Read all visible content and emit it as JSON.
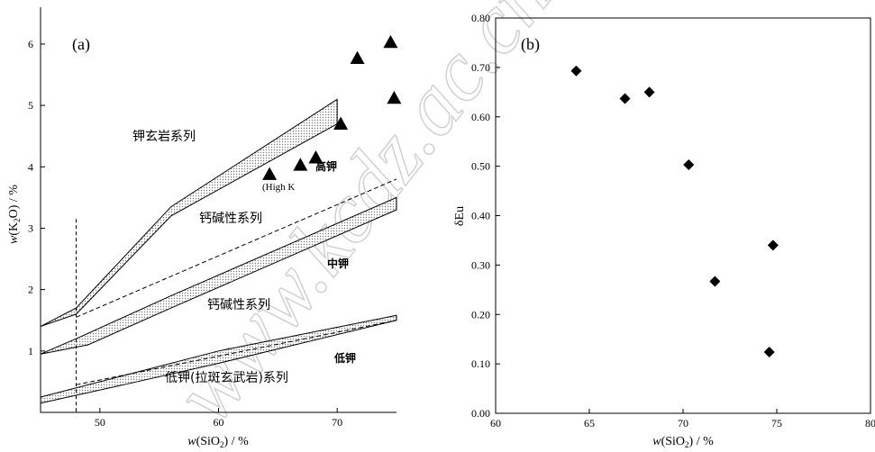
{
  "chart_data": [
    {
      "type": "scatter",
      "panel_label": "(a)",
      "xlabel": "w(SiO2) / %",
      "ylabel": "w(K2O) / %",
      "xlim": [
        45,
        75
      ],
      "ylim": [
        0,
        6.6
      ],
      "xticks": [
        50,
        60,
        70
      ],
      "yticks": [
        1,
        2,
        3,
        4,
        5,
        6
      ],
      "series": [
        {
          "marker": "triangle",
          "color": "#000000",
          "points": [
            {
              "x": 64.3,
              "y": 3.88
            },
            {
              "x": 66.9,
              "y": 4.03
            },
            {
              "x": 68.2,
              "y": 4.15
            },
            {
              "x": 70.3,
              "y": 4.7
            },
            {
              "x": 71.7,
              "y": 5.77
            },
            {
              "x": 74.5,
              "y": 6.03
            },
            {
              "x": 74.8,
              "y": 5.12
            }
          ]
        }
      ],
      "field_labels": {
        "shoshonite": "钾玄岩系列",
        "high_k_calc_alkaline": "钙碱性系列",
        "high_k": "高钾",
        "high_k_en": "(High K",
        "calc_alkaline": "钙碱性系列",
        "medium_k": "中钾",
        "low_k": "低钾",
        "low_k_series": "低钾(拉斑玄武岩)系列"
      },
      "boundaries": [
        {
          "lower": [
            [
              45,
              1.4
            ],
            [
              48,
              1.6
            ],
            [
              56,
              3.2
            ],
            [
              70,
              4.7
            ]
          ],
          "upper": [
            [
              45,
              1.4
            ],
            [
              48,
              1.7
            ],
            [
              56,
              3.35
            ],
            [
              70,
              5.1
            ]
          ],
          "shaded": true
        },
        {
          "lower": [
            [
              45,
              0.95
            ],
            [
              49,
              1.1
            ],
            [
              56,
              1.7
            ],
            [
              75,
              3.3
            ]
          ],
          "upper": [
            [
              45,
              0.95
            ],
            [
              48,
              1.2
            ],
            [
              56,
              1.9
            ],
            [
              75,
              3.5
            ]
          ],
          "shaded": true
        },
        {
          "lower": [
            [
              45,
              0.15
            ],
            [
              52,
              0.45
            ],
            [
              60,
              0.8
            ],
            [
              75,
              1.5
            ]
          ],
          "upper": [
            [
              45,
              0.25
            ],
            [
              52,
              0.6
            ],
            [
              60,
              1.0
            ],
            [
              75,
              1.58
            ]
          ],
          "shaded": true
        }
      ],
      "dashed_lines": [
        {
          "points": [
            [
              48,
              1.55
            ],
            [
              75,
              3.8
            ]
          ]
        },
        {
          "points": [
            [
              48,
              0.45
            ],
            [
              75,
              1.5
            ]
          ]
        }
      ],
      "vertical_dashed_x": 48
    },
    {
      "type": "scatter",
      "panel_label": "(b)",
      "xlabel": "w(SiO2) / %",
      "ylabel": "δEu",
      "xlim": [
        60,
        80
      ],
      "ylim": [
        0,
        0.8
      ],
      "xticks": [
        60,
        65,
        70,
        75,
        80
      ],
      "yticks": [
        "0.00",
        "0.10",
        "0.20",
        "0.30",
        "0.40",
        "0.50",
        "0.60",
        "0.70",
        "0.80"
      ],
      "series": [
        {
          "marker": "diamond",
          "color": "#000000",
          "points": [
            {
              "x": 64.3,
              "y": 0.693
            },
            {
              "x": 66.9,
              "y": 0.637
            },
            {
              "x": 68.2,
              "y": 0.65
            },
            {
              "x": 70.3,
              "y": 0.503
            },
            {
              "x": 71.7,
              "y": 0.267
            },
            {
              "x": 74.6,
              "y": 0.124
            },
            {
              "x": 74.8,
              "y": 0.34
            }
          ]
        }
      ]
    }
  ],
  "watermark": "www.kcdz.ac.cn/"
}
